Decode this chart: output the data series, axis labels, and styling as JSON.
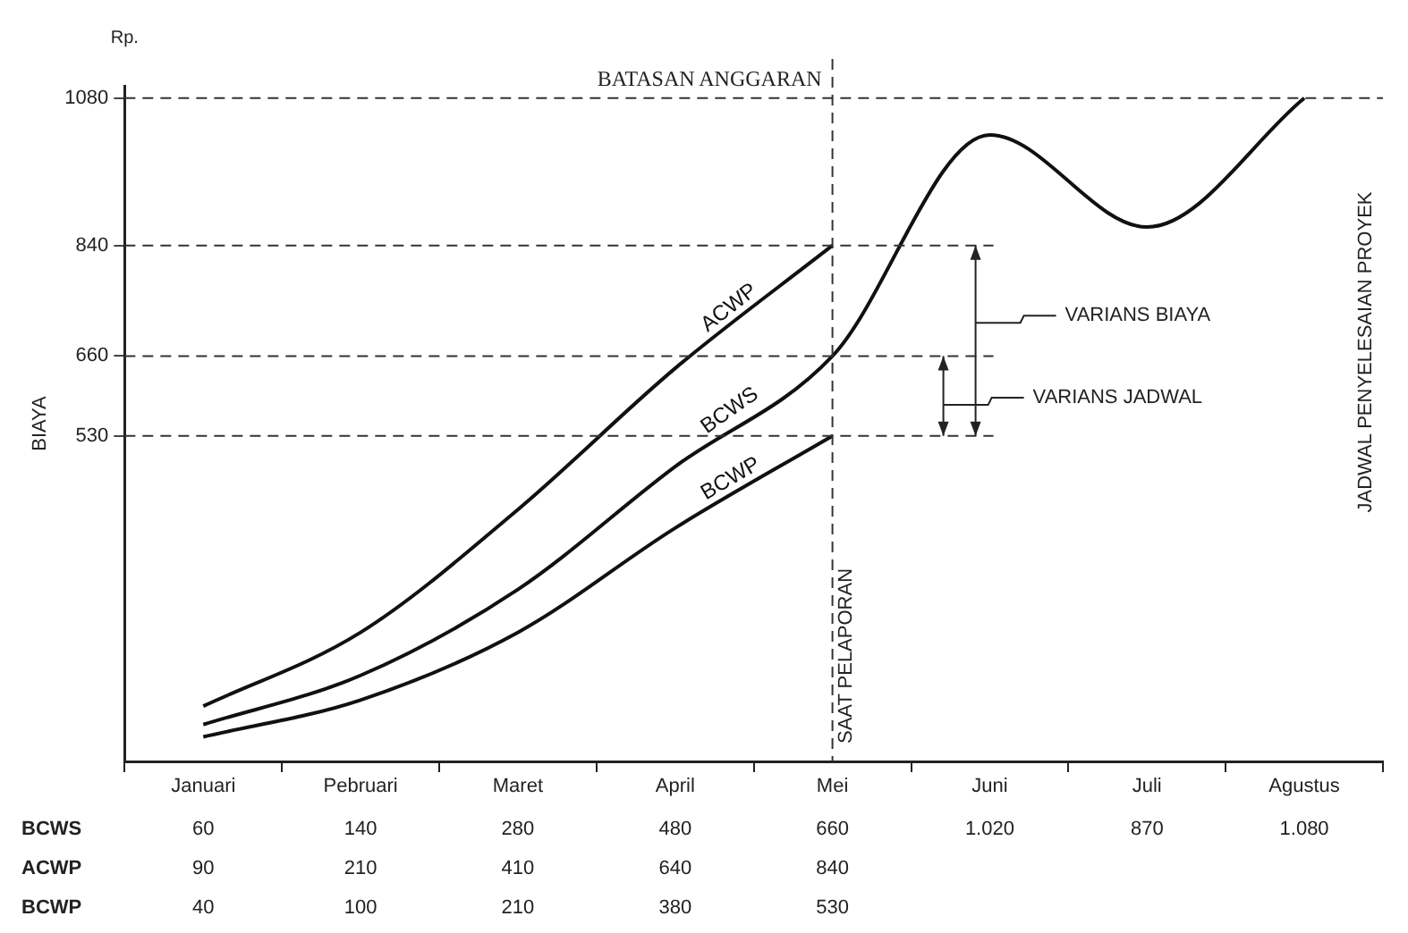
{
  "chart_data": {
    "type": "line",
    "ylabel": "BIAYA",
    "categories": [
      "Januari",
      "Pebruari",
      "Maret",
      "April",
      "Mei",
      "Juni",
      "Juli",
      "Agustus"
    ],
    "series": [
      {
        "name": "BCWS",
        "color": "#111111",
        "values": [
          60,
          140,
          280,
          480,
          660,
          1020,
          870,
          1080
        ],
        "value_labels": [
          "60",
          "140",
          "280",
          "480",
          "660",
          "1.020",
          "870",
          "1.080"
        ]
      },
      {
        "name": "ACWP",
        "color": "#111111",
        "values": [
          90,
          210,
          410,
          640,
          840,
          null,
          null,
          null
        ],
        "value_labels": [
          "90",
          "210",
          "410",
          "640",
          "840",
          null,
          null,
          null
        ]
      },
      {
        "name": "BCWP",
        "color": "#111111",
        "values": [
          40,
          100,
          210,
          380,
          530,
          null,
          null,
          null
        ],
        "value_labels": [
          "40",
          "100",
          "210",
          "380",
          "530",
          null,
          null,
          null
        ]
      }
    ],
    "ylim": [
      0,
      1100
    ],
    "yticks": [
      530,
      660,
      840,
      1080
    ],
    "legend": false,
    "marker": "none",
    "line_style": "solid",
    "ref_lines": [
      {
        "axis": "y",
        "value": 1080,
        "label": "BATASAN ANGGARAN",
        "line_style": "dashed"
      },
      {
        "axis": "y",
        "value": 840,
        "line_style": "dashed"
      },
      {
        "axis": "y",
        "value": 660,
        "line_style": "dashed"
      },
      {
        "axis": "y",
        "value": 530,
        "line_style": "dashed"
      },
      {
        "axis": "x",
        "value": "Mei",
        "label": "SAAT PELAPORAN",
        "line_style": "dashed"
      }
    ],
    "annotations": [
      "Rp.",
      "VARIANS BIAYA",
      "VARIANS JADWAL",
      "JADWAL PENYELESAIAN PROYEK"
    ]
  }
}
